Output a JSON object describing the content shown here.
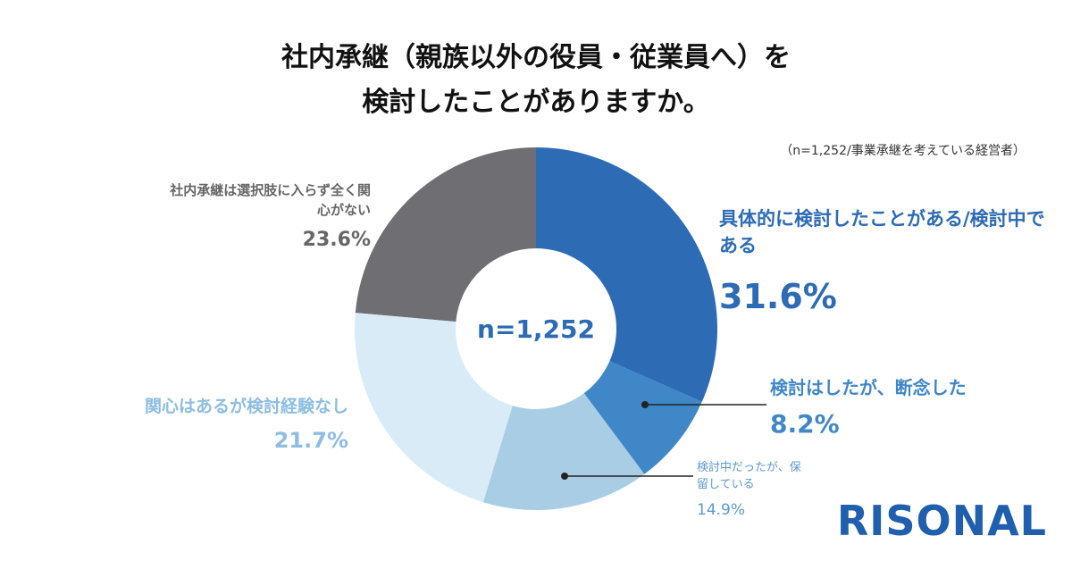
{
  "chart_data": {
    "type": "donut",
    "title": [
      "社内承継（親族以外の役員・従業員へ）を",
      "検討したことがありますか。"
    ],
    "note": "（n=1,252/事業承継を考えている経営者）",
    "center_label": "n=1,252",
    "categories": [
      "具体的に検討したことがある/検討中である",
      "検討はしたが、断念した",
      "検討中だったが、保留している",
      "関心はあるが検討経験なし",
      "社内承継は選択肢に入らず全く関心がない"
    ],
    "values": [
      31.6,
      8.2,
      14.9,
      21.7,
      23.6
    ],
    "value_labels": [
      "31.6%",
      "8.2%",
      "14.9%",
      "21.7%",
      "23.6%"
    ],
    "colors": [
      "#2d6bb5",
      "#3f87c7",
      "#aacde6",
      "#d9ebf7",
      "#6f6e72"
    ]
  },
  "logo": "RISONAL"
}
